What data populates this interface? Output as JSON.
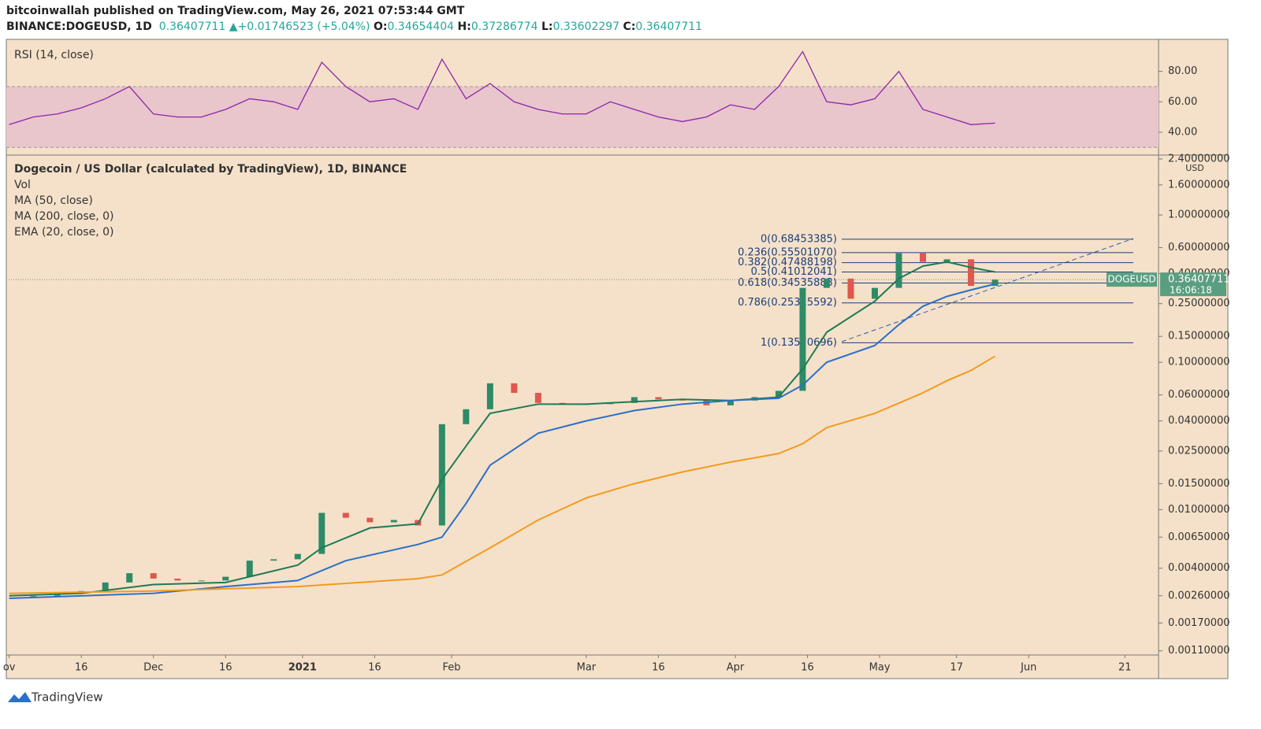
{
  "header": {
    "publisher": "bitcoinwallah published on TradingView.com, May 26, 2021 07:53:44 GMT",
    "symbol": "BINANCE:DOGEUSD, 1D",
    "last": "0.36407711",
    "arrow": "▲",
    "change": "+0.01746523 (+5.04%)",
    "o_label": "O:",
    "o": "0.34654404",
    "h_label": "H:",
    "h": "0.37286774",
    "l_label": "L:",
    "l": "0.33602297",
    "c_label": "C:",
    "c": "0.36407711"
  },
  "footer": {
    "brand": "TradingView"
  },
  "chart_data": [
    {
      "type": "rsi",
      "title": "RSI (14, close)",
      "color": "#8e24aa",
      "band": [
        30,
        70
      ],
      "band_color": "#e8c6cc",
      "ylim": [
        26,
        100
      ],
      "yticks": [
        {
          "value": 80,
          "label": "80.00"
        },
        {
          "value": 60,
          "label": "60.00"
        },
        {
          "value": 40,
          "label": "40.00"
        }
      ],
      "xlim": [
        -0.6,
        239
      ],
      "x": [
        0,
        5,
        10,
        15,
        20,
        25,
        30,
        35,
        40,
        45,
        50,
        55,
        60,
        65,
        70,
        75,
        80,
        85,
        90,
        95,
        100,
        105,
        110,
        115,
        120,
        125,
        130,
        135,
        140,
        145,
        150,
        155,
        160,
        165,
        170,
        175,
        180,
        185,
        190,
        195,
        200,
        205
      ],
      "values": [
        45,
        50,
        52,
        56,
        62,
        70,
        52,
        50,
        50,
        55,
        62,
        60,
        55,
        86,
        70,
        60,
        62,
        55,
        88,
        62,
        72,
        60,
        55,
        52,
        52,
        60,
        55,
        50,
        47,
        50,
        58,
        55,
        70,
        93,
        60,
        58,
        62,
        80,
        55,
        50,
        45,
        46
      ]
    },
    {
      "type": "candlestick-log",
      "title": "Dogecoin / US Dollar (calculated by TradingView), 1D, BINANCE",
      "legend": [
        "Vol",
        "MA (50, close)",
        "MA (200, close, 0)",
        "EMA (20, close, 0)"
      ],
      "currency": "USD",
      "log_scale": true,
      "up_color": "#2e8b67",
      "down_color": "#e0574d",
      "xlim": [
        -0.6,
        239
      ],
      "ylim": [
        0.00103,
        2.55
      ],
      "xticks": [
        {
          "value": 0,
          "label": "ov"
        },
        {
          "value": 15,
          "label": "16"
        },
        {
          "value": 30,
          "label": "Dec"
        },
        {
          "value": 45,
          "label": "16"
        },
        {
          "value": 61,
          "label": "2021"
        },
        {
          "value": 76,
          "label": "16"
        },
        {
          "value": 92,
          "label": "Feb"
        },
        {
          "value": 120,
          "label": "Mar"
        },
        {
          "value": 135,
          "label": "16"
        },
        {
          "value": 151,
          "label": "Apr"
        },
        {
          "value": 166,
          "label": "16"
        },
        {
          "value": 181,
          "label": "May"
        },
        {
          "value": 197,
          "label": "17"
        },
        {
          "value": 212,
          "label": "Jun"
        },
        {
          "value": 232,
          "label": "21"
        }
      ],
      "yticks": [
        {
          "value": 2.4,
          "label": "2.40000000"
        },
        {
          "value": 1.6,
          "label": "1.60000000"
        },
        {
          "value": 1,
          "label": "1.00000000"
        },
        {
          "value": 0.6,
          "label": "0.60000000"
        },
        {
          "value": 0.4,
          "label": "0.40000000"
        },
        {
          "value": 0.25,
          "label": "0.25000000"
        },
        {
          "value": 0.15,
          "label": "0.15000000"
        },
        {
          "value": 0.1,
          "label": "0.10000000"
        },
        {
          "value": 0.06,
          "label": "0.06000000"
        },
        {
          "value": 0.04,
          "label": "0.04000000"
        },
        {
          "value": 0.025,
          "label": "0.02500000"
        },
        {
          "value": 0.015,
          "label": "0.01500000"
        },
        {
          "value": 0.01,
          "label": "0.01000000"
        },
        {
          "value": 0.0065,
          "label": "0.00650000"
        },
        {
          "value": 0.004,
          "label": "0.00400000"
        },
        {
          "value": 0.0026,
          "label": "0.00260000"
        },
        {
          "value": 0.0017,
          "label": "0.00170000"
        },
        {
          "value": 0.0011,
          "label": "0.00110000"
        }
      ],
      "price_tag": {
        "name": "DOGEUSD",
        "value": 0.36407711,
        "label": "0.36407711",
        "countdown": "16:06:18",
        "color": "#5a9e80"
      },
      "fib": {
        "color": "#1c3f7a",
        "levels": [
          {
            "label": "0(0.68453385)",
            "value": 0.68453385
          },
          {
            "label": "0.236(0.55501070)",
            "value": 0.5550107
          },
          {
            "label": "0.382(0.47488198)",
            "value": 0.47488198
          },
          {
            "label": "0.5(0.41012041)",
            "value": 0.41012041
          },
          {
            "label": "0.618(0.34535883)",
            "value": 0.34535883
          },
          {
            "label": "0.786(0.25315592)",
            "value": 0.25315592
          },
          {
            "label": "1(0.13570696)",
            "value": 0.13570696
          }
        ]
      },
      "series": [
        {
          "name": "Close",
          "kind": "candles",
          "x": [
            0,
            5,
            10,
            15,
            20,
            25,
            30,
            35,
            40,
            45,
            50,
            55,
            60,
            65,
            70,
            75,
            80,
            85,
            90,
            95,
            100,
            105,
            110,
            115,
            120,
            125,
            130,
            135,
            140,
            145,
            150,
            155,
            160,
            165,
            170,
            175,
            180,
            185,
            190,
            195,
            200,
            205
          ],
          "values": [
            0.0026,
            0.0026,
            0.0027,
            0.0028,
            0.0032,
            0.0037,
            0.0034,
            0.0033,
            0.0033,
            0.0035,
            0.0045,
            0.0046,
            0.005,
            0.0095,
            0.0088,
            0.0082,
            0.0085,
            0.0078,
            0.038,
            0.048,
            0.072,
            0.062,
            0.053,
            0.052,
            0.052,
            0.053,
            0.058,
            0.056,
            0.055,
            0.051,
            0.055,
            0.058,
            0.064,
            0.32,
            0.37,
            0.27,
            0.32,
            0.55,
            0.48,
            0.5,
            0.33,
            0.364
          ]
        },
        {
          "name": "EMA (20, close, 0)",
          "kind": "line",
          "color": "#1e7a55",
          "x": [
            0,
            15,
            30,
            45,
            60,
            65,
            75,
            85,
            90,
            95,
            100,
            110,
            120,
            130,
            140,
            150,
            160,
            165,
            170,
            180,
            185,
            190,
            195,
            200,
            205
          ],
          "values": [
            0.0026,
            0.0027,
            0.0031,
            0.0032,
            0.0042,
            0.0055,
            0.0075,
            0.008,
            0.016,
            0.027,
            0.045,
            0.052,
            0.052,
            0.054,
            0.056,
            0.055,
            0.058,
            0.09,
            0.16,
            0.26,
            0.37,
            0.45,
            0.48,
            0.44,
            0.41
          ]
        },
        {
          "name": "MA (50, close)",
          "kind": "line",
          "color": "#2a6fc9",
          "x": [
            0,
            30,
            45,
            60,
            70,
            85,
            90,
            95,
            100,
            110,
            120,
            130,
            140,
            150,
            160,
            165,
            170,
            180,
            185,
            190,
            195,
            200,
            205
          ],
          "values": [
            0.0025,
            0.0027,
            0.003,
            0.0033,
            0.0045,
            0.0058,
            0.0065,
            0.011,
            0.02,
            0.033,
            0.04,
            0.047,
            0.052,
            0.055,
            0.057,
            0.07,
            0.1,
            0.13,
            0.18,
            0.24,
            0.28,
            0.31,
            0.34
          ]
        },
        {
          "name": "MA (200, close, 0)",
          "kind": "line",
          "color": "#f39a1e",
          "x": [
            0,
            30,
            60,
            85,
            90,
            100,
            110,
            120,
            130,
            140,
            150,
            160,
            165,
            170,
            180,
            190,
            195,
            200,
            205
          ],
          "values": [
            0.0027,
            0.0028,
            0.003,
            0.0034,
            0.0036,
            0.0055,
            0.0085,
            0.012,
            0.015,
            0.018,
            0.021,
            0.024,
            0.028,
            0.036,
            0.045,
            0.062,
            0.075,
            0.088,
            0.11
          ]
        }
      ]
    }
  ]
}
